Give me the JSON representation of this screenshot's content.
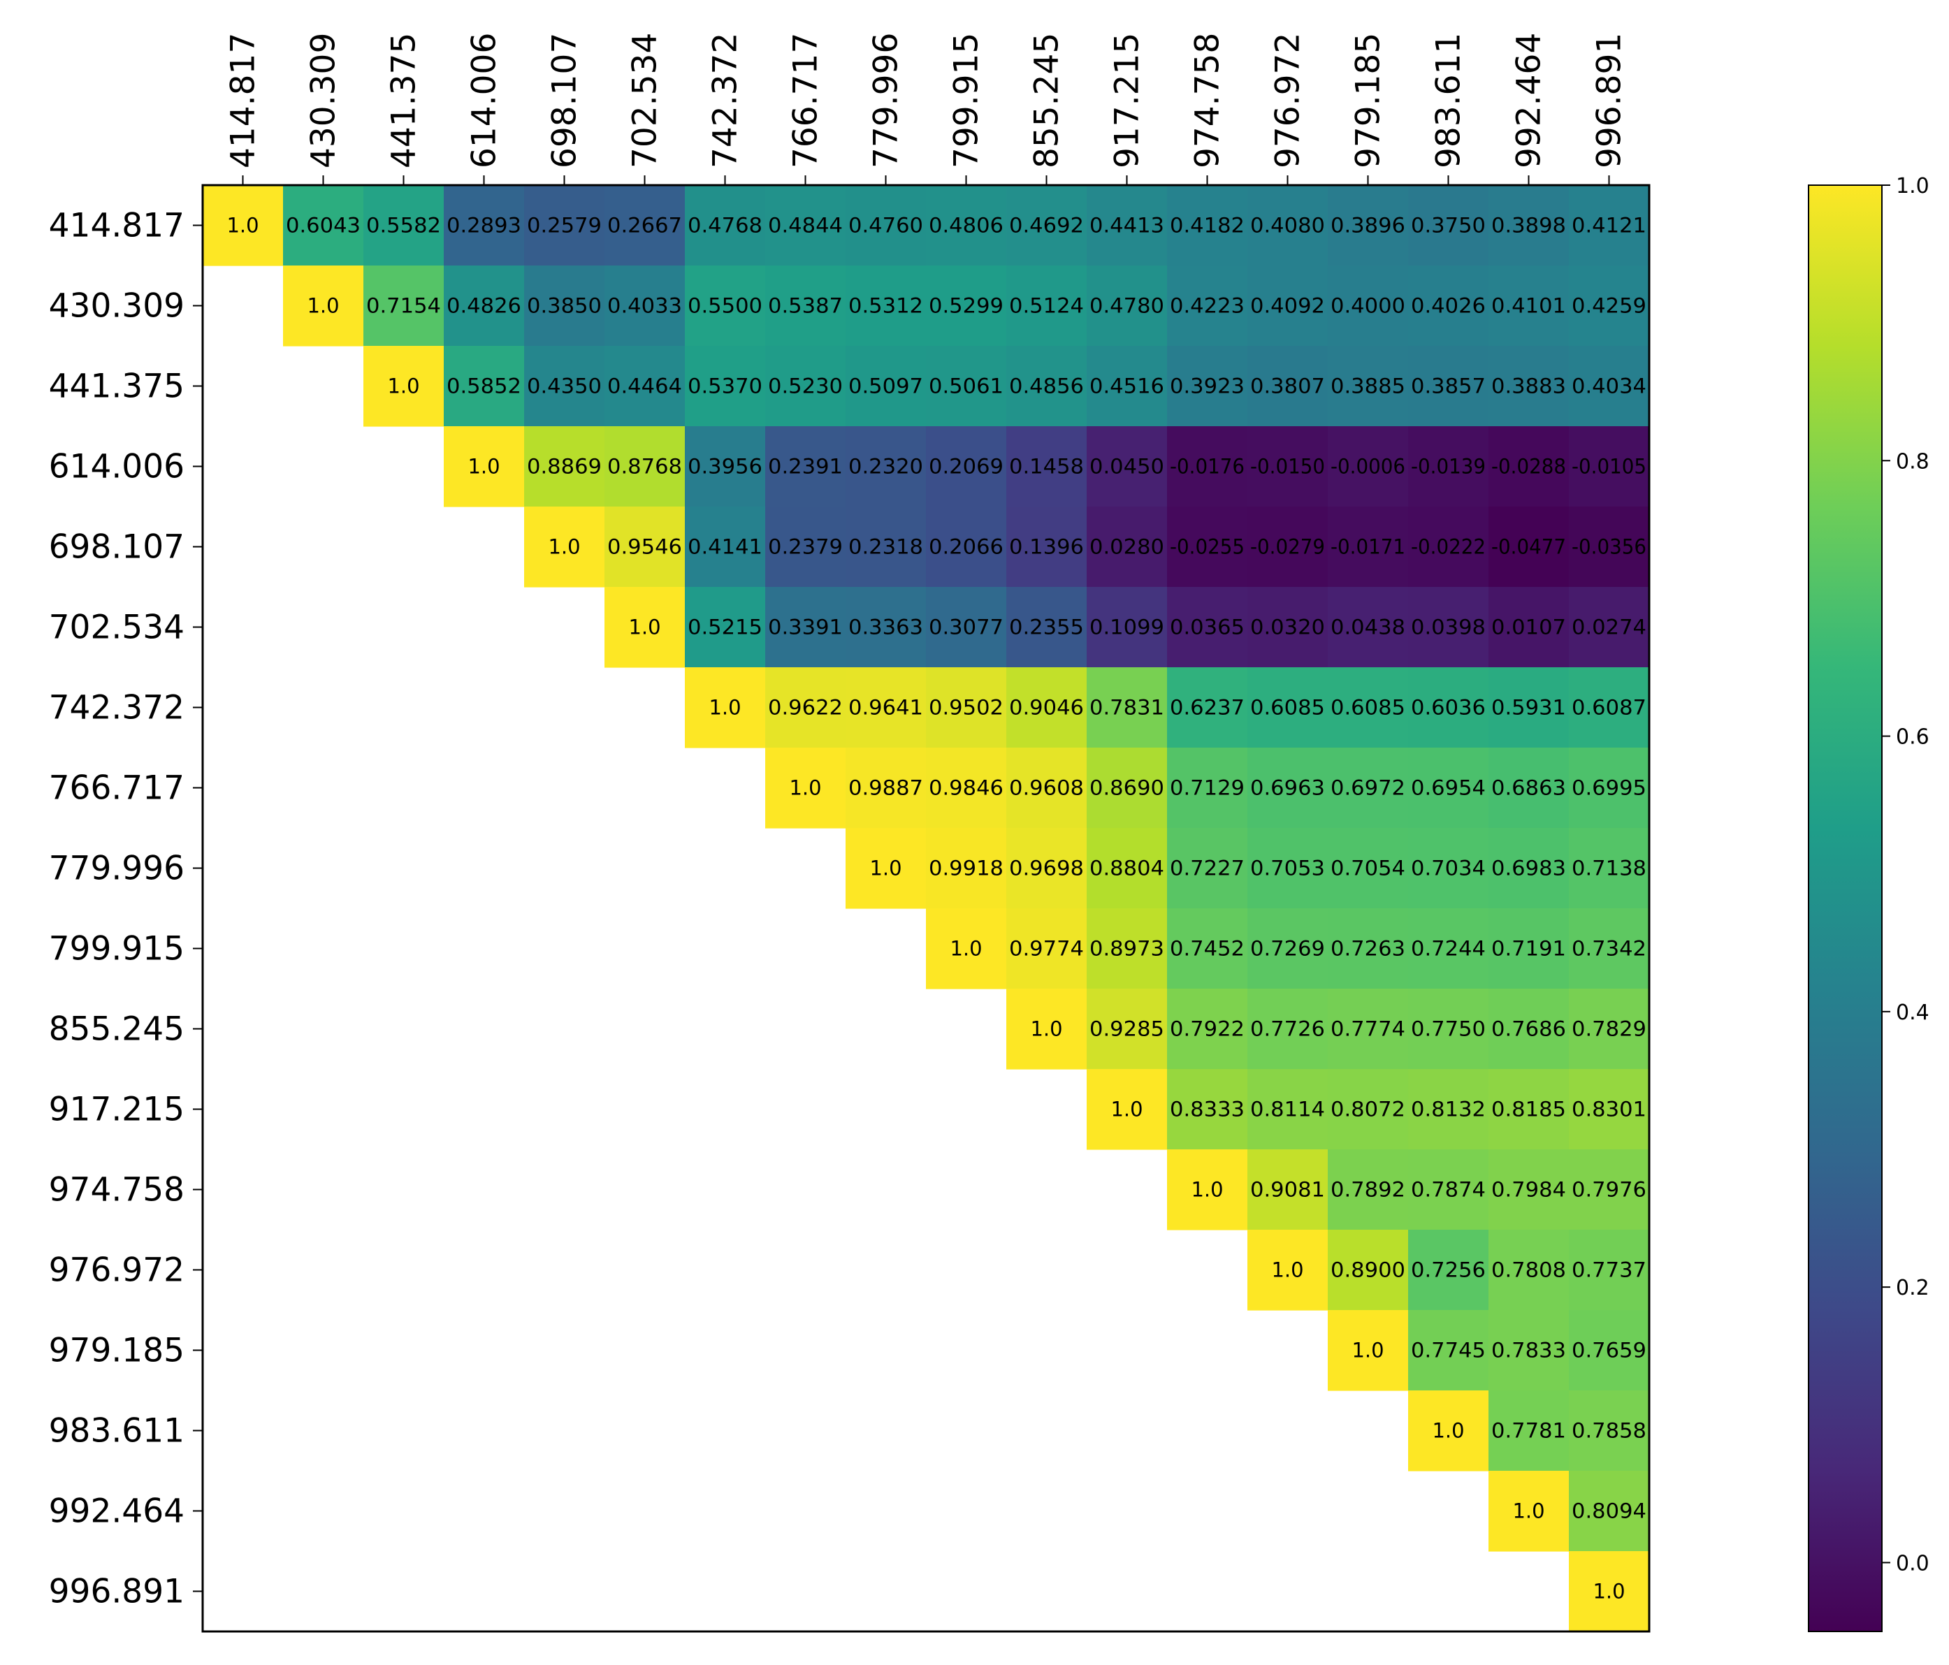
{
  "chart_data": {
    "type": "heatmap",
    "title": "",
    "xlabel": "",
    "ylabel": "",
    "labels": [
      "414.817",
      "430.309",
      "441.375",
      "614.006",
      "698.107",
      "702.534",
      "742.372",
      "766.717",
      "779.996",
      "799.915",
      "855.245",
      "917.215",
      "974.758",
      "976.972",
      "979.185",
      "983.611",
      "992.464",
      "996.891"
    ],
    "matrix": [
      [
        "1.0",
        "0.6043",
        "0.5582",
        "0.2893",
        "0.2579",
        "0.2667",
        "0.4768",
        "0.4844",
        "0.4760",
        "0.4806",
        "0.4692",
        "0.4413",
        "0.4182",
        "0.4080",
        "0.3896",
        "0.3750",
        "0.3898",
        "0.4121"
      ],
      [
        null,
        "1.0",
        "0.7154",
        "0.4826",
        "0.3850",
        "0.4033",
        "0.5500",
        "0.5387",
        "0.5312",
        "0.5299",
        "0.5124",
        "0.4780",
        "0.4223",
        "0.4092",
        "0.4000",
        "0.4026",
        "0.4101",
        "0.4259"
      ],
      [
        null,
        null,
        "1.0",
        "0.5852",
        "0.4350",
        "0.4464",
        "0.5370",
        "0.5230",
        "0.5097",
        "0.5061",
        "0.4856",
        "0.4516",
        "0.3923",
        "0.3807",
        "0.3885",
        "0.3857",
        "0.3883",
        "0.4034"
      ],
      [
        null,
        null,
        null,
        "1.0",
        "0.8869",
        "0.8768",
        "0.3956",
        "0.2391",
        "0.2320",
        "0.2069",
        "0.1458",
        "0.0450",
        "-0.0176",
        "-0.0150",
        "-0.0006",
        "-0.0139",
        "-0.0288",
        "-0.0105"
      ],
      [
        null,
        null,
        null,
        null,
        "1.0",
        "0.9546",
        "0.4141",
        "0.2379",
        "0.2318",
        "0.2066",
        "0.1396",
        "0.0280",
        "-0.0255",
        "-0.0279",
        "-0.0171",
        "-0.0222",
        "-0.0477",
        "-0.0356"
      ],
      [
        null,
        null,
        null,
        null,
        null,
        "1.0",
        "0.5215",
        "0.3391",
        "0.3363",
        "0.3077",
        "0.2355",
        "0.1099",
        "0.0365",
        "0.0320",
        "0.0438",
        "0.0398",
        "0.0107",
        "0.0274"
      ],
      [
        null,
        null,
        null,
        null,
        null,
        null,
        "1.0",
        "0.9622",
        "0.9641",
        "0.9502",
        "0.9046",
        "0.7831",
        "0.6237",
        "0.6085",
        "0.6085",
        "0.6036",
        "0.5931",
        "0.6087"
      ],
      [
        null,
        null,
        null,
        null,
        null,
        null,
        null,
        "1.0",
        "0.9887",
        "0.9846",
        "0.9608",
        "0.8690",
        "0.7129",
        "0.6963",
        "0.6972",
        "0.6954",
        "0.6863",
        "0.6995"
      ],
      [
        null,
        null,
        null,
        null,
        null,
        null,
        null,
        null,
        "1.0",
        "0.9918",
        "0.9698",
        "0.8804",
        "0.7227",
        "0.7053",
        "0.7054",
        "0.7034",
        "0.6983",
        "0.7138"
      ],
      [
        null,
        null,
        null,
        null,
        null,
        null,
        null,
        null,
        null,
        "1.0",
        "0.9774",
        "0.8973",
        "0.7452",
        "0.7269",
        "0.7263",
        "0.7244",
        "0.7191",
        "0.7342"
      ],
      [
        null,
        null,
        null,
        null,
        null,
        null,
        null,
        null,
        null,
        null,
        "1.0",
        "0.9285",
        "0.7922",
        "0.7726",
        "0.7774",
        "0.7750",
        "0.7686",
        "0.7829"
      ],
      [
        null,
        null,
        null,
        null,
        null,
        null,
        null,
        null,
        null,
        null,
        null,
        "1.0",
        "0.8333",
        "0.8114",
        "0.8072",
        "0.8132",
        "0.8185",
        "0.8301"
      ],
      [
        null,
        null,
        null,
        null,
        null,
        null,
        null,
        null,
        null,
        null,
        null,
        null,
        "1.0",
        "0.9081",
        "0.7892",
        "0.7874",
        "0.7984",
        "0.7976"
      ],
      [
        null,
        null,
        null,
        null,
        null,
        null,
        null,
        null,
        null,
        null,
        null,
        null,
        null,
        "1.0",
        "0.8900",
        "0.7256",
        "0.7808",
        "0.7737"
      ],
      [
        null,
        null,
        null,
        null,
        null,
        null,
        null,
        null,
        null,
        null,
        null,
        null,
        null,
        null,
        "1.0",
        "0.7745",
        "0.7833",
        "0.7659"
      ],
      [
        null,
        null,
        null,
        null,
        null,
        null,
        null,
        null,
        null,
        null,
        null,
        null,
        null,
        null,
        null,
        "1.0",
        "0.7781",
        "0.7858"
      ],
      [
        null,
        null,
        null,
        null,
        null,
        null,
        null,
        null,
        null,
        null,
        null,
        null,
        null,
        null,
        null,
        null,
        "1.0",
        "0.8094"
      ],
      [
        null,
        null,
        null,
        null,
        null,
        null,
        null,
        null,
        null,
        null,
        null,
        null,
        null,
        null,
        null,
        null,
        null,
        "1.0"
      ]
    ],
    "colormap": "viridis",
    "colormap_stops": [
      "#440154",
      "#482878",
      "#3e4989",
      "#31688e",
      "#26828e",
      "#1f9e89",
      "#35b779",
      "#6ece58",
      "#b5de2b",
      "#fde725"
    ],
    "color_range": [
      -0.05,
      1.0
    ],
    "colorbar": {
      "ticks": [
        0.0,
        0.2,
        0.4,
        0.6,
        0.8,
        1.0
      ],
      "tick_labels": [
        "0.0",
        "0.2",
        "0.4",
        "0.6",
        "0.8",
        "1.0"
      ],
      "range": [
        -0.05,
        1.0
      ]
    },
    "grid": false,
    "x_axis_position": "top",
    "legend": "none"
  }
}
